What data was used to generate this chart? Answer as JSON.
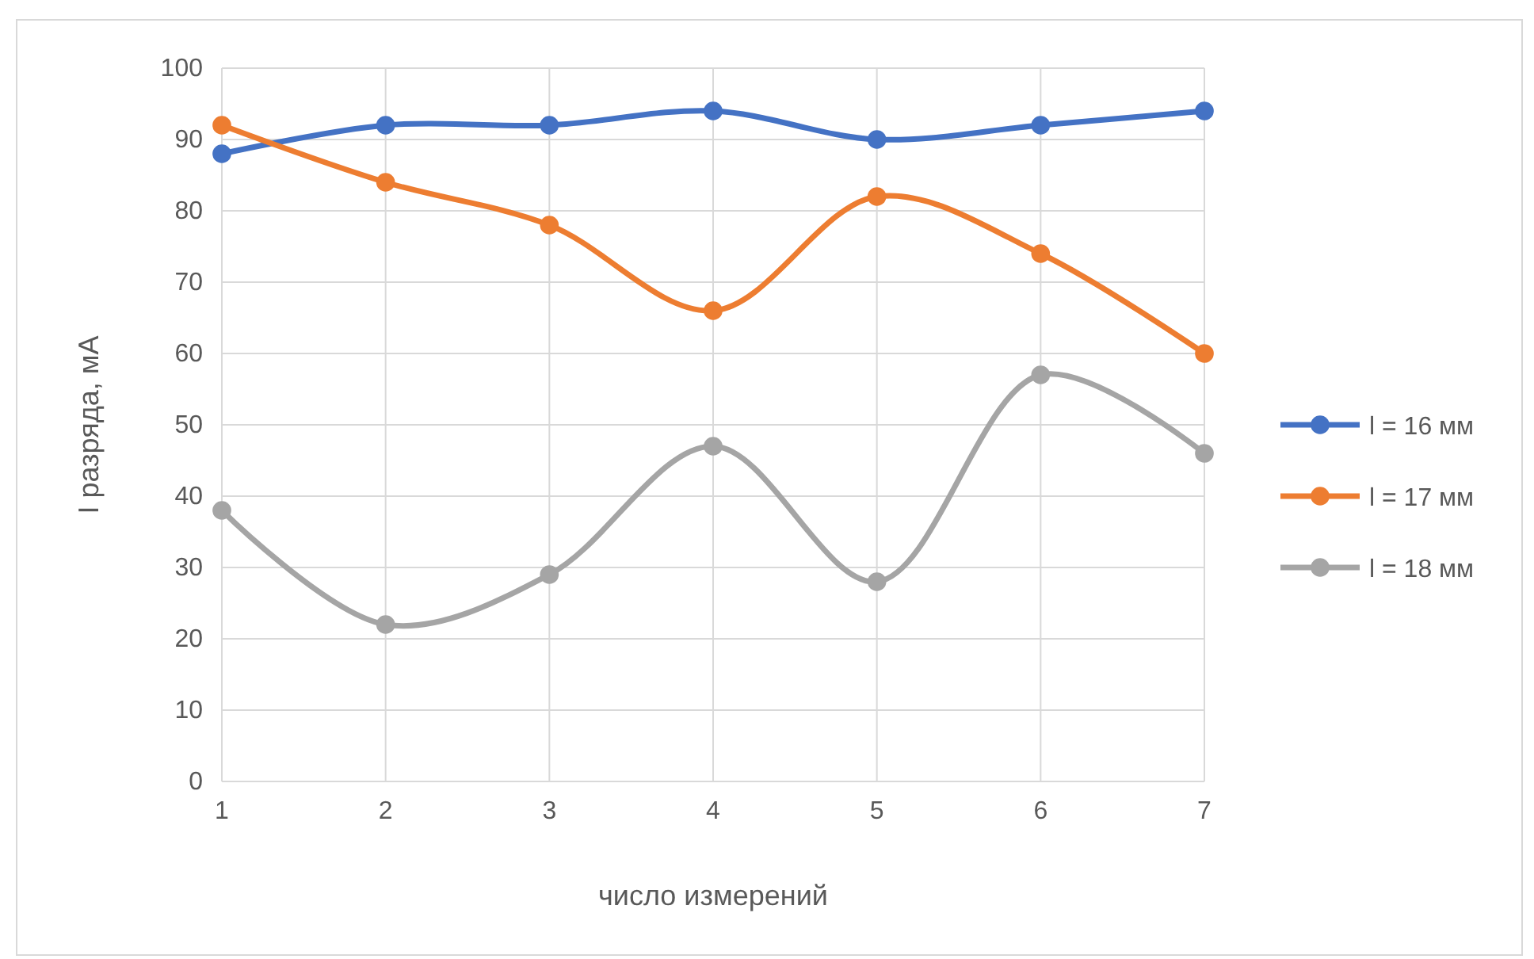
{
  "chart_data": {
    "type": "line",
    "xlabel": "число измерений",
    "ylabel": "I разряда, мА",
    "x": [
      1,
      2,
      3,
      4,
      5,
      6,
      7
    ],
    "xlim": [
      1,
      7
    ],
    "xticks": [
      1,
      2,
      3,
      4,
      5,
      6,
      7
    ],
    "ylim": [
      0,
      100
    ],
    "yticks": [
      0,
      10,
      20,
      30,
      40,
      50,
      60,
      70,
      80,
      90,
      100
    ],
    "grid": true,
    "legend": "right",
    "marker": "circle",
    "line_style": "solid",
    "series": [
      {
        "name": "l = 16 мм",
        "color": "#4472c4",
        "values": [
          88,
          92,
          92,
          94,
          90,
          92,
          94
        ]
      },
      {
        "name": "l = 17 мм",
        "color": "#ed7d31",
        "values": [
          92,
          84,
          78,
          66,
          82,
          74,
          60
        ]
      },
      {
        "name": "l = 18 мм",
        "color": "#a5a5a5",
        "values": [
          38,
          22,
          29,
          47,
          28,
          57,
          46
        ]
      }
    ]
  }
}
